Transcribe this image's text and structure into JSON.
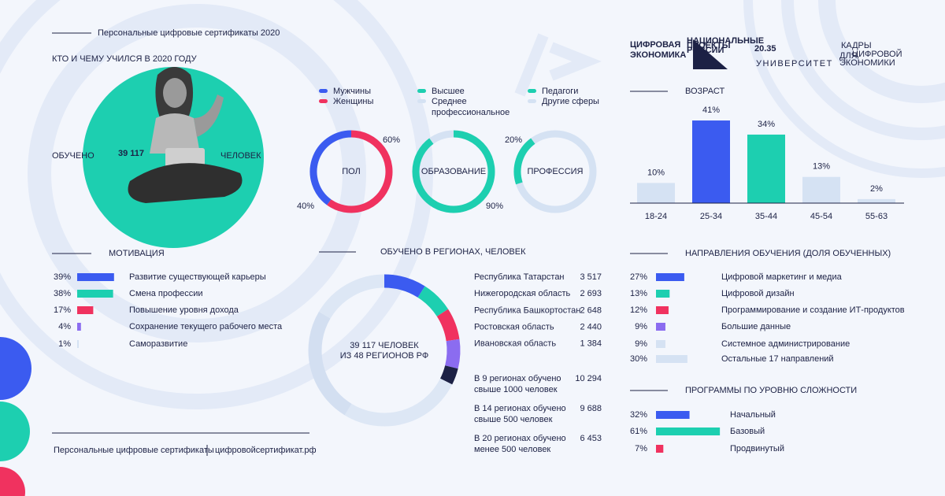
{
  "header": {
    "kicker": "Персональные цифровые сертификаты 2020",
    "title": "КТО И ЧЕМУ УЧИЛСЯ В 2020 ГОДУ"
  },
  "logos": {
    "digital_economy": [
      "ЦИФРОВАЯ",
      "ЭКОНОМИКА"
    ],
    "national_projects": [
      "НАЦИОНАЛЬНЫЕ",
      "ПРОЕКТЫ",
      "РОССИИ"
    ],
    "university": {
      "number": "20.35",
      "word": "УНИВЕРСИТЕТ"
    },
    "cadres": [
      "КАДРЫ",
      "ДЛЯ",
      "ЦИФРОВОЙ",
      "ЭКОНОМИКИ"
    ]
  },
  "trained": {
    "prefix": "ОБУЧЕНО",
    "number": "39 117",
    "suffix": "ЧЕЛОВЕК"
  },
  "legend": [
    {
      "name": "Мужчины",
      "color": "#3b5bf0"
    },
    {
      "name": "Женщины",
      "color": "#f0325f"
    },
    {
      "name": "Высшее",
      "color": "#1dcfb0"
    },
    {
      "name": "Среднее профессиональное",
      "color": "#d5e2f3"
    },
    {
      "name": "Педагоги",
      "color": "#1dcfb0"
    },
    {
      "name": "Другие сферы",
      "color": "#d5e2f3"
    }
  ],
  "donuts": [
    {
      "name": "ПОЛ",
      "segments": [
        {
          "value": 60,
          "label": "60%",
          "color": "#f0325f"
        },
        {
          "value": 40,
          "label": "40%",
          "color": "#3b5bf0"
        }
      ]
    },
    {
      "name": "ОБРАЗОВАНИЕ",
      "segments": [
        {
          "value": 90,
          "label": "90%",
          "color": "#1dcfb0"
        }
      ]
    },
    {
      "name": "ПРОФЕССИЯ",
      "segments": [
        {
          "value": 20,
          "label": "20%",
          "color": "#1dcfb0"
        }
      ]
    }
  ],
  "age": {
    "title": "ВОЗРАСТ",
    "bars": [
      {
        "name": "18-24",
        "value": 10,
        "label": "10%",
        "color": "#d5e2f3"
      },
      {
        "name": "25-34",
        "value": 41,
        "label": "41%",
        "color": "#3b5bf0"
      },
      {
        "name": "35-44",
        "value": 34,
        "label": "34%",
        "color": "#1dcfb0"
      },
      {
        "name": "45-54",
        "value": 13,
        "label": "13%",
        "color": "#d5e2f3"
      },
      {
        "name": "55-63",
        "value": 2,
        "label": "2%",
        "color": "#d5e2f3"
      }
    ]
  },
  "motivation": {
    "title": "МОТИВАЦИЯ",
    "items": [
      {
        "name": "Развитие существующей карьеры",
        "value": 39,
        "label": "39%",
        "color": "#3b5bf0"
      },
      {
        "name": "Смена профессии",
        "value": 38,
        "label": "38%",
        "color": "#1dcfb0"
      },
      {
        "name": "Повышение уровня дохода",
        "value": 17,
        "label": "17%",
        "color": "#f0325f"
      },
      {
        "name": "Сохранение текущего рабочего места",
        "value": 4,
        "label": "4%",
        "color": "#8b6cf0"
      },
      {
        "name": "Саморазвитие",
        "value": 1,
        "label": "1%",
        "color": "#d5e2f3"
      }
    ]
  },
  "regions": {
    "title": "ОБУЧЕНО В РЕГИОНАХ, ЧЕЛОВЕК",
    "center": [
      "39 117 ЧЕЛОВЕК",
      "ИЗ 48 РЕГИОНОВ РФ"
    ],
    "items": [
      {
        "name": "Республика Татарстан",
        "value": 3517,
        "label": "3 517",
        "color": "#3b5bf0"
      },
      {
        "name": "Нижегородская область",
        "value": 2693,
        "label": "2 693",
        "color": "#1dcfb0"
      },
      {
        "name": "Республика Башкортостан",
        "value": 2648,
        "label": "2 648",
        "color": "#f0325f"
      },
      {
        "name": "Ростовская область",
        "value": 2440,
        "label": "2 440",
        "color": "#8b6cf0"
      },
      {
        "name": "Ивановская область",
        "value": 1384,
        "label": "1 384",
        "color": "#1c2145"
      }
    ],
    "groups": [
      {
        "name": "В 9 регионах обучено свыше 1000 человек",
        "value": 10294,
        "label": "10 294",
        "color": "#dde7f5"
      },
      {
        "name": "В 14 регионах обучено свыше 500 человек",
        "value": 9688,
        "label": "9 688",
        "color": "#d3dff1"
      },
      {
        "name": "В 20 регионах обучено менее 500 человек",
        "value": 6453,
        "label": "6 453",
        "color": "#dde7f5"
      }
    ]
  },
  "directions": {
    "title": "НАПРАВЛЕНИЯ ОБУЧЕНИЯ (ДОЛЯ ОБУЧЕННЫХ)",
    "items": [
      {
        "name": "Цифровой маркетинг и медиа",
        "value": 27,
        "label": "27%",
        "color": "#3b5bf0"
      },
      {
        "name": "Цифровой дизайн",
        "value": 13,
        "label": "13%",
        "color": "#1dcfb0"
      },
      {
        "name": "Программирование и создание ИТ-продуктов",
        "value": 12,
        "label": "12%",
        "color": "#f0325f"
      },
      {
        "name": "Большие данные",
        "value": 9,
        "label": "9%",
        "color": "#8b6cf0"
      },
      {
        "name": "Системное администрирование",
        "value": 9,
        "label": "9%",
        "color": "#d5e2f3"
      },
      {
        "name": "Остальные 17 направлений",
        "value": 30,
        "label": "30%",
        "color": "#d5e2f3"
      }
    ]
  },
  "programs": {
    "title": "ПРОГРАММЫ ПО УРОВНЮ СЛОЖНОСТИ",
    "items": [
      {
        "name": "Начальный",
        "value": 32,
        "label": "32%",
        "color": "#3b5bf0"
      },
      {
        "name": "Базовый",
        "value": 61,
        "label": "61%",
        "color": "#1dcfb0"
      },
      {
        "name": "Продвинутый",
        "value": 7,
        "label": "7%",
        "color": "#f0325f"
      }
    ]
  },
  "footer": [
    "Персональные цифровые сертификаты",
    "цифровойсертификат.рф"
  ]
}
